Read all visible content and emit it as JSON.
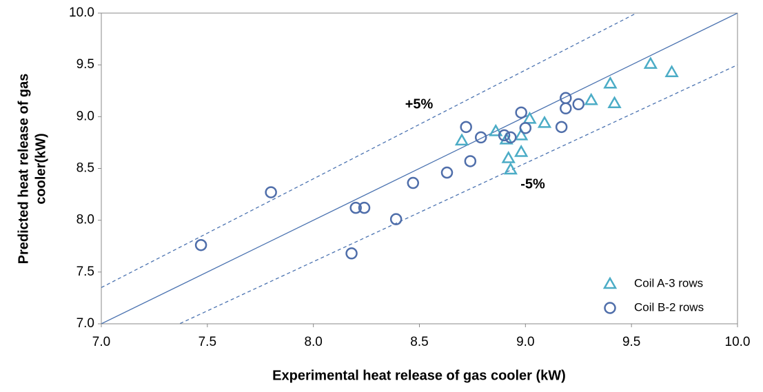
{
  "chart_data": {
    "type": "scatter",
    "xlabel": "Experimental heat release of gas cooler (kW)",
    "ylabel": [
      "Predicted heat release of gas",
      "cooler(kW)"
    ],
    "annotations": [
      "+5%",
      "-5%"
    ],
    "xlim": [
      7.0,
      10.0
    ],
    "ylim": [
      7.0,
      10.0
    ],
    "xticks": [
      {
        "value": 7.0,
        "label": "7.0"
      },
      {
        "value": 7.5,
        "label": "7.5"
      },
      {
        "value": 8.0,
        "label": "8.0"
      },
      {
        "value": 8.5,
        "label": "8.5"
      },
      {
        "value": 9.0,
        "label": "9.0"
      },
      {
        "value": 9.5,
        "label": "9.5"
      },
      {
        "value": 10.0,
        "label": "10.0"
      }
    ],
    "yticks": [
      {
        "value": 7.0,
        "label": "7.0"
      },
      {
        "value": 7.5,
        "label": "7.5"
      },
      {
        "value": 8.0,
        "label": "8.0"
      },
      {
        "value": 8.5,
        "label": "8.5"
      },
      {
        "value": 9.0,
        "label": "9.0"
      },
      {
        "value": 9.5,
        "label": "9.5"
      },
      {
        "value": 10.0,
        "label": "10.0"
      }
    ],
    "reference_lines": [
      {
        "factor": 1,
        "color": "#4a72b0",
        "dashed": false
      },
      {
        "factor": 1.05,
        "color": "#4a72b0",
        "dashed": true
      },
      {
        "factor": 0.95,
        "color": "#4a72b0",
        "dashed": true
      }
    ],
    "legend": "lower right",
    "series": [
      {
        "name": "Coil A-3 rows",
        "marker": "triangle",
        "color": "#4bacc6",
        "x": [
          8.7,
          8.86,
          8.91,
          8.92,
          8.93,
          8.98,
          8.98,
          9.02,
          9.09,
          9.31,
          9.4,
          9.42,
          9.59,
          9.69
        ],
        "values": [
          8.77,
          8.86,
          8.78,
          8.6,
          8.49,
          8.66,
          8.82,
          8.98,
          8.94,
          9.16,
          9.32,
          9.13,
          9.51,
          9.43
        ]
      },
      {
        "name": "Coil B-2 rows",
        "marker": "circle",
        "color": "#4f6eaa",
        "x": [
          7.47,
          7.8,
          8.18,
          8.2,
          8.24,
          8.39,
          8.47,
          8.63,
          8.74,
          8.72,
          8.79,
          8.98,
          8.9,
          8.93,
          9.0,
          9.17,
          9.19,
          9.19,
          9.25
        ],
        "values": [
          7.76,
          8.27,
          7.68,
          8.12,
          8.12,
          8.01,
          8.36,
          8.46,
          8.57,
          8.9,
          8.8,
          9.04,
          8.82,
          8.8,
          8.89,
          8.9,
          9.08,
          9.18,
          9.12
        ]
      }
    ]
  }
}
